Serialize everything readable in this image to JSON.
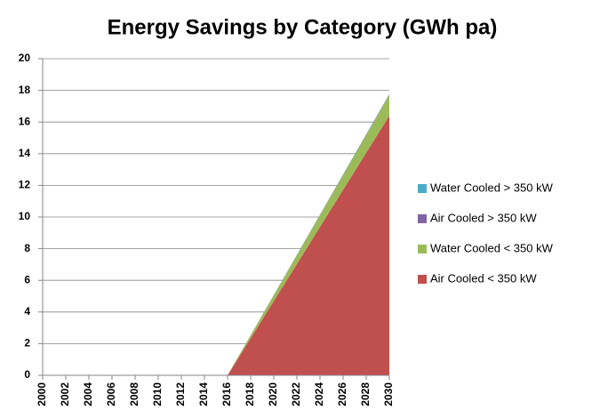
{
  "chart_data": {
    "type": "stacked-area",
    "title": "Energy Savings by Category (GWh pa)",
    "x": [
      2000,
      2016,
      2030
    ],
    "series": [
      {
        "name": "Air Cooled < 350 kW",
        "color": "#c0504d",
        "values": [
          0,
          0,
          16.4
        ]
      },
      {
        "name": "Water Cooled < 350 kW",
        "color": "#9bbb59",
        "values": [
          0,
          0,
          1.3
        ]
      },
      {
        "name": "Air Cooled > 350 kW",
        "color": "#8064a2",
        "values": [
          0,
          0,
          0.04
        ]
      },
      {
        "name": "Water Cooled > 350 kW",
        "color": "#4bacc6",
        "values": [
          0,
          0,
          0.03
        ]
      }
    ],
    "xlim": [
      2000,
      2030
    ],
    "xticks": [
      2000,
      2002,
      2004,
      2006,
      2008,
      2010,
      2012,
      2014,
      2016,
      2018,
      2020,
      2022,
      2024,
      2026,
      2028,
      2030
    ],
    "ylim": [
      0,
      20
    ],
    "yticks": [
      0,
      2,
      4,
      6,
      8,
      10,
      12,
      14,
      16,
      18,
      20
    ],
    "grid": true,
    "legend": "right"
  }
}
